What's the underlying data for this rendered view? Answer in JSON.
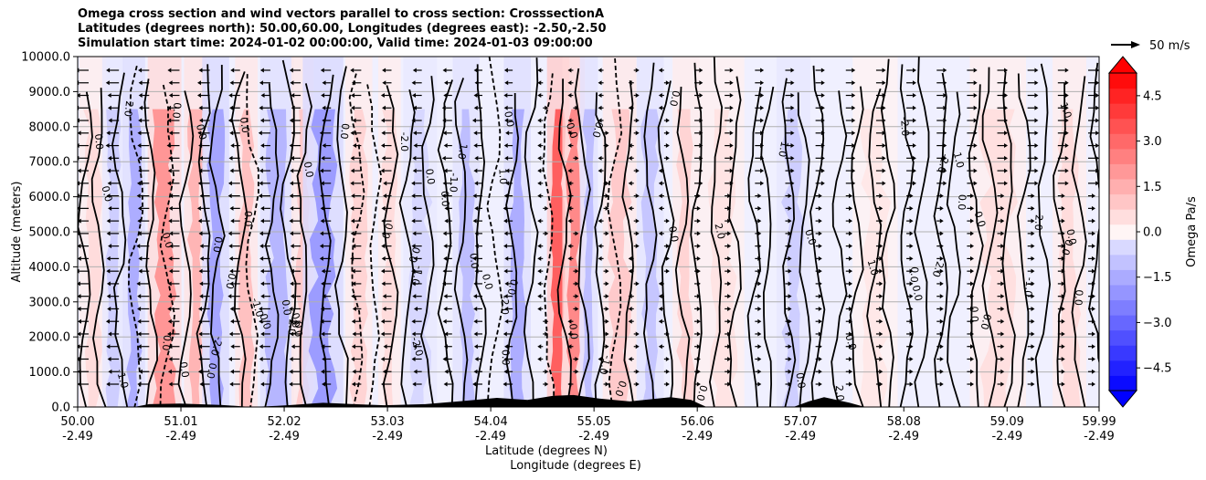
{
  "title_lines": [
    "Omega cross section and wind vectors parallel to cross section: CrosssectionA",
    "Latitudes (degrees north): 50.00,60.00, Longitudes (degrees east): -2.50,-2.50",
    "Simulation start time: 2024-01-02 00:00:00, Valid time: 2024-01-03 09:00:00"
  ],
  "chart_data": {
    "type": "heatmap",
    "xlabel_line1": "Latitude (degrees N)",
    "xlabel_line2": "Longitude (degrees E)",
    "ylabel": "Altitude (meters)",
    "xlim": [
      50.0,
      59.99
    ],
    "ylim": [
      0,
      10000
    ],
    "x_ticks": [
      {
        "lat": "50.00",
        "lon": "-2.49",
        "value": 50.0
      },
      {
        "lat": "51.01",
        "lon": "-2.49",
        "value": 51.01
      },
      {
        "lat": "52.02",
        "lon": "-2.49",
        "value": 52.02
      },
      {
        "lat": "53.03",
        "lon": "-2.49",
        "value": 53.03
      },
      {
        "lat": "54.04",
        "lon": "-2.49",
        "value": 54.04
      },
      {
        "lat": "55.05",
        "lon": "-2.49",
        "value": 55.05
      },
      {
        "lat": "56.06",
        "lon": "-2.49",
        "value": 56.06
      },
      {
        "lat": "57.07",
        "lon": "-2.49",
        "value": 57.07
      },
      {
        "lat": "58.08",
        "lon": "-2.49",
        "value": 58.08
      },
      {
        "lat": "59.09",
        "lon": "-2.49",
        "value": 59.09
      },
      {
        "lat": "59.99",
        "lon": "-2.49",
        "value": 59.99
      }
    ],
    "y_ticks": [
      {
        "label": "0.0",
        "value": 0
      },
      {
        "label": "1000.0",
        "value": 1000
      },
      {
        "label": "2000.0",
        "value": 2000
      },
      {
        "label": "3000.0",
        "value": 3000
      },
      {
        "label": "4000.0",
        "value": 4000
      },
      {
        "label": "5000.0",
        "value": 5000
      },
      {
        "label": "6000.0",
        "value": 6000
      },
      {
        "label": "7000.0",
        "value": 7000
      },
      {
        "label": "8000.0",
        "value": 8000
      },
      {
        "label": "9000.0",
        "value": 9000
      },
      {
        "label": "10000.0",
        "value": 10000
      }
    ],
    "colorbar": {
      "label": "Omega Pa/s",
      "range": [
        -5.25,
        5.25
      ],
      "tick_labels": [
        {
          "label": "4.5",
          "value": 4.5
        },
        {
          "label": "3.0",
          "value": 3.0
        },
        {
          "label": "1.5",
          "value": 1.5
        },
        {
          "label": "0.0",
          "value": 0.0
        },
        {
          "label": "−1.5",
          "value": -1.5
        },
        {
          "label": "−3.0",
          "value": -3.0
        },
        {
          "label": "−4.5",
          "value": -4.5
        }
      ]
    },
    "quiver_key": "50 m/s",
    "contour_labels": [
      "0.0",
      "-1.0",
      "1.0",
      "-2.0",
      "2.0"
    ],
    "grid_y": true,
    "omega_columns": [
      {
        "x": 50.15,
        "width": 0.12,
        "value": 0.6
      },
      {
        "x": 50.35,
        "width": 0.1,
        "value": -0.8
      },
      {
        "x": 50.55,
        "width": 0.1,
        "value": -1.6
      },
      {
        "x": 50.85,
        "width": 0.15,
        "value": 2.2
      },
      {
        "x": 51.15,
        "width": 0.1,
        "value": 1.5
      },
      {
        "x": 51.35,
        "width": 0.12,
        "value": -1.8
      },
      {
        "x": 51.65,
        "width": 0.1,
        "value": 1.2
      },
      {
        "x": 51.95,
        "width": 0.15,
        "value": -1.4
      },
      {
        "x": 52.2,
        "width": 0.1,
        "value": 1.0
      },
      {
        "x": 52.4,
        "width": 0.18,
        "value": -2.0
      },
      {
        "x": 52.75,
        "width": 0.12,
        "value": 0.8
      },
      {
        "x": 53.05,
        "width": 0.1,
        "value": 0.6
      },
      {
        "x": 53.35,
        "width": 0.15,
        "value": -0.6
      },
      {
        "x": 53.8,
        "width": 0.12,
        "value": -1.2
      },
      {
        "x": 54.3,
        "width": 0.12,
        "value": -1.6
      },
      {
        "x": 54.7,
        "width": 0.1,
        "value": 3.5
      },
      {
        "x": 54.85,
        "width": 0.1,
        "value": 2.5
      },
      {
        "x": 55.0,
        "width": 0.08,
        "value": -1.2
      },
      {
        "x": 55.3,
        "width": 0.15,
        "value": 1.0
      },
      {
        "x": 55.6,
        "width": 0.12,
        "value": -1.0
      },
      {
        "x": 55.95,
        "width": 0.12,
        "value": 0.8
      },
      {
        "x": 56.3,
        "width": 0.2,
        "value": 0.4
      },
      {
        "x": 57.0,
        "width": 0.15,
        "value": -0.8
      },
      {
        "x": 57.8,
        "width": 0.2,
        "value": 0.3
      },
      {
        "x": 59.0,
        "width": 0.25,
        "value": 0.5
      },
      {
        "x": 59.7,
        "width": 0.15,
        "value": 0.6
      }
    ],
    "terrain": [
      {
        "x": 50.0,
        "h": 0
      },
      {
        "x": 50.55,
        "h": 0
      },
      {
        "x": 50.7,
        "h": 80
      },
      {
        "x": 51.0,
        "h": 100
      },
      {
        "x": 51.4,
        "h": 60
      },
      {
        "x": 51.7,
        "h": 0
      },
      {
        "x": 51.95,
        "h": 30
      },
      {
        "x": 52.1,
        "h": 60
      },
      {
        "x": 52.4,
        "h": 120
      },
      {
        "x": 52.7,
        "h": 80
      },
      {
        "x": 53.0,
        "h": 50
      },
      {
        "x": 53.4,
        "h": 80
      },
      {
        "x": 53.8,
        "h": 180
      },
      {
        "x": 54.1,
        "h": 260
      },
      {
        "x": 54.4,
        "h": 200
      },
      {
        "x": 54.65,
        "h": 320
      },
      {
        "x": 54.85,
        "h": 340
      },
      {
        "x": 55.1,
        "h": 240
      },
      {
        "x": 55.4,
        "h": 160
      },
      {
        "x": 55.8,
        "h": 280
      },
      {
        "x": 56.0,
        "h": 200
      },
      {
        "x": 56.15,
        "h": 0
      },
      {
        "x": 57.0,
        "h": 0
      },
      {
        "x": 57.15,
        "h": 160
      },
      {
        "x": 57.3,
        "h": 280
      },
      {
        "x": 57.55,
        "h": 120
      },
      {
        "x": 57.7,
        "h": 0
      },
      {
        "x": 59.99,
        "h": 0
      }
    ]
  }
}
